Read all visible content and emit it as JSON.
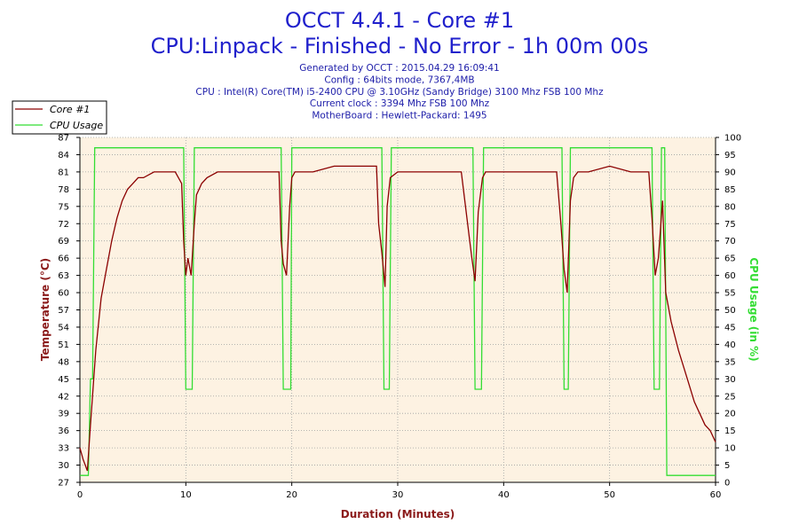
{
  "header": {
    "title": "OCCT 4.4.1 - Core #1",
    "subtitle": "CPU:Linpack - Finished - No Error - 1h 00m 00s",
    "info": [
      "Generated by OCCT : 2015.04.29 16:09:41",
      "Config : 64bits mode, 7367,4MB",
      "CPU : Intel(R) Core(TM) i5-2400 CPU @ 3.10GHz (Sandy Bridge) 3100 Mhz FSB 100 Mhz",
      "Current clock : 3394 Mhz FSB 100 Mhz",
      "MotherBoard : Hewlett-Packard: 1495"
    ]
  },
  "colors": {
    "temperature": "#8b0000",
    "cpu_usage": "#33dd33",
    "title": "#2020cc",
    "info": "#2020aa",
    "plot_bg": "#fdf2e2",
    "grid": "#a0a0a0"
  },
  "chart_data": {
    "type": "line",
    "xlabel": "Duration (Minutes)",
    "ylabel_left": "Temperature (°C)",
    "ylabel_right": "CPU Usage (in %)",
    "xlim": [
      0,
      60
    ],
    "x_ticks": [
      0,
      10,
      20,
      30,
      40,
      50,
      60
    ],
    "ylim_left": [
      27,
      87
    ],
    "y_ticks_left": [
      27,
      30,
      33,
      36,
      39,
      42,
      45,
      48,
      51,
      54,
      57,
      60,
      63,
      66,
      69,
      72,
      75,
      78,
      81,
      84,
      87
    ],
    "y_tick_labels_left": [
      "27",
      "30",
      "33",
      "36",
      "39",
      "42",
      "45",
      "48",
      "51",
      "54",
      "57",
      "60",
      "63",
      "66",
      "69",
      "72",
      "75",
      "78",
      "81",
      "84",
      "87"
    ],
    "ylim_right": [
      0,
      100
    ],
    "y_ticks_right": [
      0,
      5,
      10,
      15,
      20,
      25,
      30,
      35,
      40,
      45,
      50,
      55,
      60,
      65,
      70,
      75,
      80,
      85,
      90,
      95,
      100
    ],
    "y_tick_labels_right": [
      "0",
      "5",
      "10",
      "15",
      "20",
      "25",
      "30",
      "35",
      "40",
      "45",
      "50",
      "55",
      "60",
      "65",
      "70",
      "75",
      "80",
      "85",
      "90",
      "95",
      "100"
    ],
    "legend_position": "top-left",
    "grid": true,
    "series": [
      {
        "name": "Core #1",
        "axis": "left",
        "x": [
          0,
          0.3,
          0.7,
          1.0,
          1.5,
          2.0,
          2.5,
          3.0,
          3.5,
          4.0,
          4.5,
          5.0,
          5.5,
          6.0,
          7.0,
          8.0,
          9.0,
          9.6,
          9.8,
          10.0,
          10.2,
          10.5,
          10.8,
          11.0,
          11.5,
          12.0,
          13.0,
          14.0,
          16.0,
          18.0,
          18.8,
          19.0,
          19.2,
          19.5,
          19.8,
          20.0,
          20.3,
          21.0,
          22.0,
          24.0,
          26.0,
          28.0,
          28.2,
          28.5,
          28.8,
          29.0,
          29.3,
          30.0,
          32.0,
          34.0,
          36.0,
          36.8,
          37.0,
          37.3,
          37.6,
          38.0,
          38.3,
          39.0,
          41.0,
          43.0,
          45.0,
          45.4,
          45.7,
          46.0,
          46.3,
          46.6,
          47.0,
          48.0,
          50.0,
          52.0,
          53.7,
          54.0,
          54.3,
          54.6,
          55.0,
          55.3,
          55.8,
          56.5,
          57.0,
          57.5,
          58.0,
          58.5,
          59.0,
          59.5,
          60.0
        ],
        "y": [
          33,
          31,
          29,
          37,
          50,
          59,
          64,
          69,
          73,
          76,
          78,
          79,
          80,
          80,
          81,
          81,
          81,
          79,
          69,
          63,
          66,
          63,
          72,
          77,
          79,
          80,
          81,
          81,
          81,
          81,
          81,
          69,
          65,
          63,
          75,
          80,
          81,
          81,
          81,
          82,
          82,
          82,
          72,
          67,
          61,
          75,
          80,
          81,
          81,
          81,
          81,
          69,
          66,
          62,
          74,
          80,
          81,
          81,
          81,
          81,
          81,
          72,
          64,
          60,
          76,
          80,
          81,
          81,
          82,
          81,
          81,
          73,
          63,
          66,
          76,
          60,
          55,
          50,
          47,
          44,
          41,
          39,
          37,
          36,
          34
        ]
      },
      {
        "name": "CPU Usage",
        "axis": "right",
        "x": [
          0,
          0.8,
          1.0,
          1.2,
          1.4,
          9.8,
          10.0,
          10.6,
          10.8,
          19.0,
          19.2,
          19.9,
          20.0,
          28.5,
          28.7,
          29.2,
          29.4,
          37.1,
          37.3,
          37.9,
          38.1,
          45.5,
          45.7,
          46.1,
          46.3,
          54.0,
          54.2,
          54.7,
          54.9,
          55.2,
          55.4,
          60.0
        ],
        "y": [
          2,
          2,
          30,
          30,
          97,
          97,
          27,
          27,
          97,
          97,
          27,
          27,
          97,
          97,
          27,
          27,
          97,
          97,
          27,
          27,
          97,
          97,
          27,
          27,
          97,
          97,
          27,
          27,
          97,
          97,
          2,
          2
        ]
      }
    ]
  }
}
